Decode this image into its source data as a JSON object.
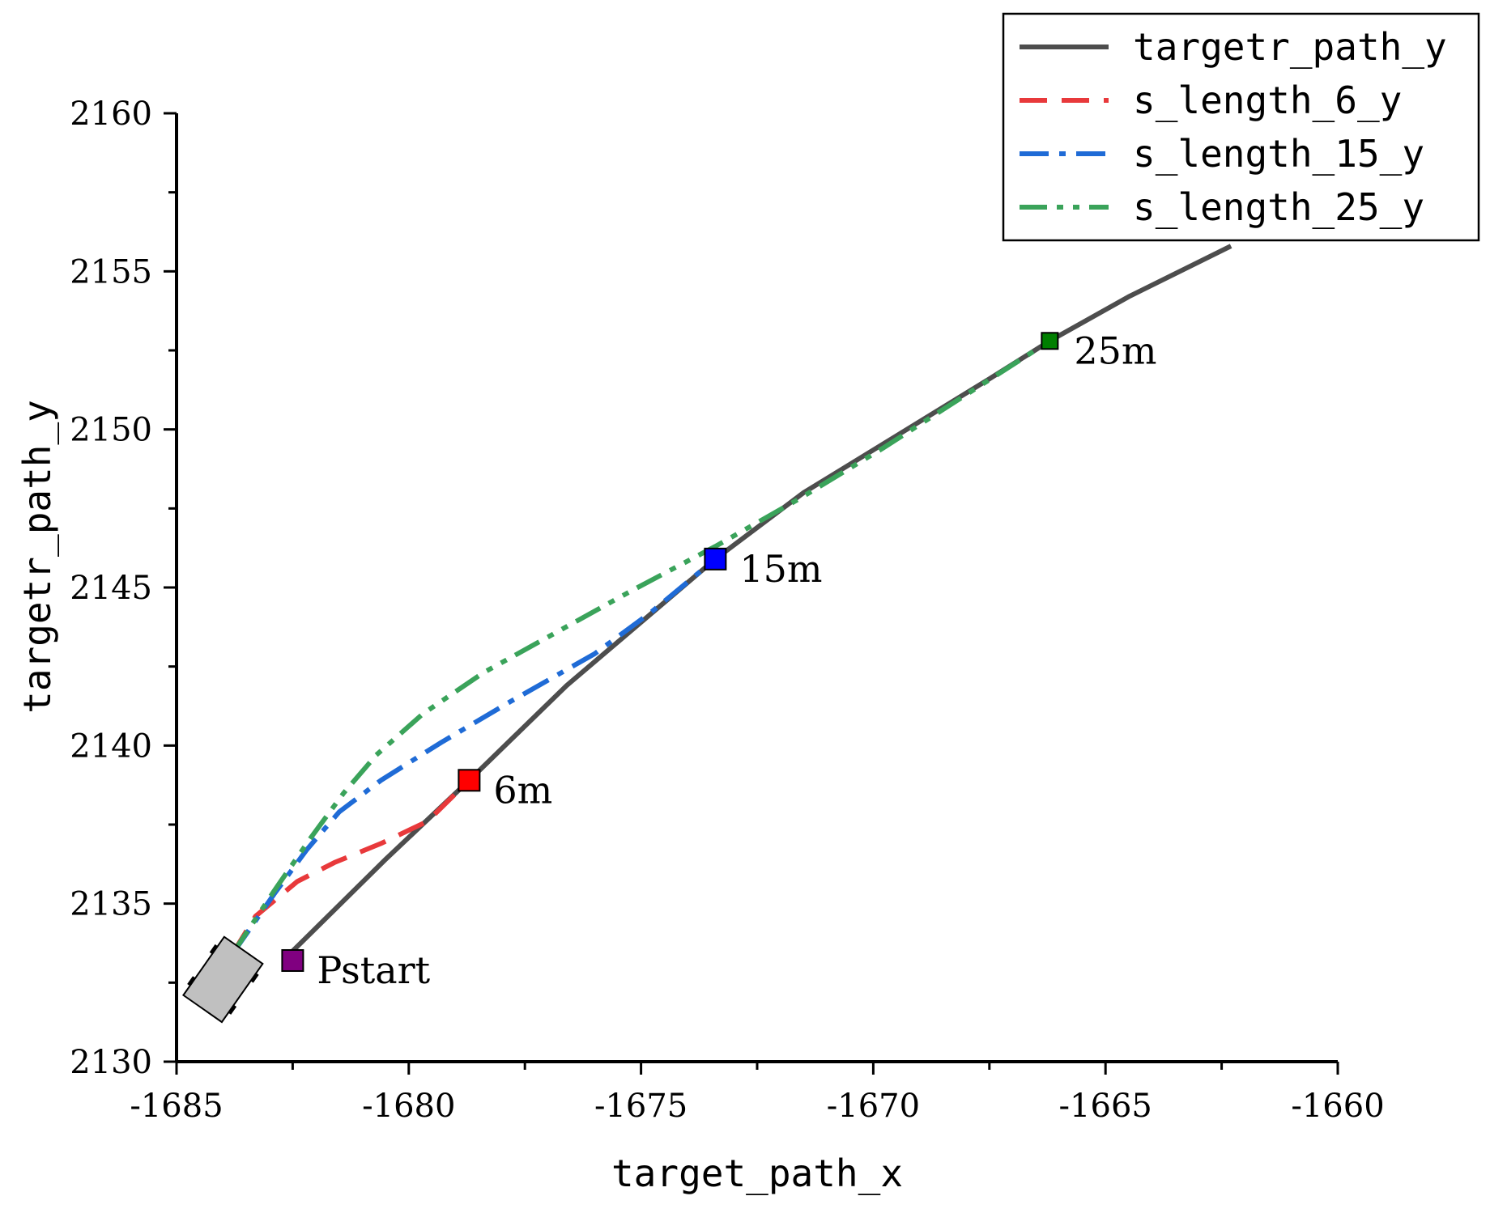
{
  "chart_data": {
    "type": "line",
    "xlabel": "target_path_x",
    "ylabel": "targetr_path_y",
    "xlim": [
      -1685,
      -1660
    ],
    "ylim": [
      2130,
      2160
    ],
    "xticks": [
      -1685,
      -1680,
      -1675,
      -1670,
      -1665,
      -1660
    ],
    "yticks": [
      2130,
      2135,
      2140,
      2145,
      2150,
      2155,
      2160
    ],
    "xtick_labels": [
      "-1685",
      "-1680",
      "-1675",
      "-1670",
      "-1665",
      "-1660"
    ],
    "ytick_labels": [
      "2130",
      "2135",
      "2140",
      "2145",
      "2150",
      "2155",
      "2160"
    ],
    "grid": false,
    "legend_position": "top-right",
    "series": [
      {
        "name": "targetr_path_y",
        "color": "#4d4d4d",
        "style": "solid",
        "x": [
          -1682.5,
          -1680.5,
          -1678.7,
          -1676.6,
          -1675.0,
          -1673.4,
          -1671.5,
          -1669.5,
          -1667.5,
          -1666.2,
          -1664.5,
          -1662.3
        ],
        "y": [
          2133.5,
          2136.4,
          2138.9,
          2141.9,
          2143.9,
          2145.9,
          2148.0,
          2149.8,
          2151.6,
          2152.8,
          2154.2,
          2155.8
        ]
      },
      {
        "name": "s_length_6_y",
        "color": "#e8393b",
        "style": "dashed",
        "x": [
          -1683.8,
          -1683.3,
          -1682.4,
          -1681.6,
          -1680.6,
          -1679.6,
          -1678.7
        ],
        "y": [
          2133.4,
          2134.6,
          2135.7,
          2136.3,
          2136.9,
          2137.6,
          2138.9
        ]
      },
      {
        "name": "s_length_15_y",
        "color": "#1f6bd6",
        "style": "dashdot",
        "x": [
          -1683.8,
          -1682.9,
          -1682.2,
          -1681.5,
          -1680.6,
          -1679.3,
          -1677.8,
          -1676.0,
          -1674.8,
          -1673.4
        ],
        "y": [
          2133.4,
          2135.3,
          2136.7,
          2137.9,
          2138.9,
          2140.1,
          2141.4,
          2142.9,
          2144.2,
          2145.9
        ]
      },
      {
        "name": "s_length_25_y",
        "color": "#3aa35a",
        "style": "dashdotdot",
        "x": [
          -1683.8,
          -1682.9,
          -1682.1,
          -1681.4,
          -1680.7,
          -1679.7,
          -1678.4,
          -1676.8,
          -1675.2,
          -1673.4,
          -1671.6,
          -1669.8,
          -1668.0,
          -1666.2
        ],
        "y": [
          2133.4,
          2135.4,
          2137.1,
          2138.5,
          2139.7,
          2141.0,
          2142.3,
          2143.6,
          2144.9,
          2146.3,
          2147.8,
          2149.4,
          2151.1,
          2152.8
        ]
      }
    ],
    "annotations": [
      {
        "text": "Pstart",
        "x": -1682.5,
        "y": 2133.2,
        "marker_color": "#800080"
      },
      {
        "text": "6m",
        "x": -1678.7,
        "y": 2138.9,
        "marker_color": "#ff0000"
      },
      {
        "text": "15m",
        "x": -1673.4,
        "y": 2145.9,
        "marker_color": "#0000ff"
      },
      {
        "text": "25m",
        "x": -1666.2,
        "y": 2152.8,
        "marker_color": "#007f00"
      }
    ],
    "vehicle": {
      "x": -1684.0,
      "y": 2132.6,
      "heading_deg": 55,
      "color": "#c0c0c0"
    }
  }
}
